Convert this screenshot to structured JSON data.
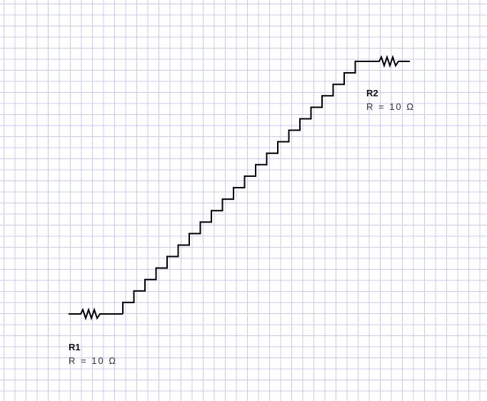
{
  "components": [
    {
      "id": "R1",
      "name": "R1",
      "value": "R = 10 Ω"
    },
    {
      "id": "R2",
      "name": "R2",
      "value": "R = 10 Ω"
    }
  ],
  "colors": {
    "grid": "#c9c9f5",
    "wire": "#000000",
    "text": "#111111"
  }
}
